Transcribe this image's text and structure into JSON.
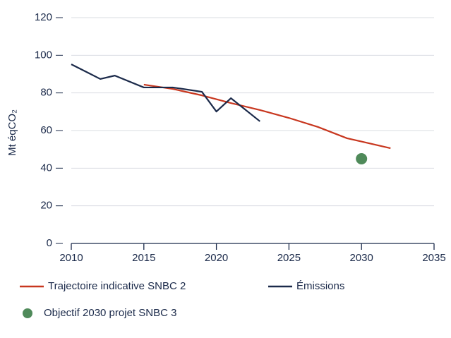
{
  "chart_data": {
    "type": "line",
    "ylabel": "Mt éqCO₂",
    "xlim": [
      2010,
      2035
    ],
    "xticks": [
      2010,
      2015,
      2020,
      2025,
      2030,
      2035
    ],
    "ylim": [
      0,
      120
    ],
    "yticks": [
      0,
      20,
      40,
      60,
      80,
      100,
      120
    ],
    "grid": true,
    "series": [
      {
        "name": "Trajectoire indicative SNBC 2",
        "color": "#c8371f",
        "style": "line",
        "x": [
          2015,
          2017,
          2019,
          2021,
          2023,
          2025,
          2027,
          2029,
          2032
        ],
        "values": [
          84.4,
          82.1,
          78.7,
          74.6,
          70.9,
          66.7,
          61.9,
          55.9,
          50.6
        ]
      },
      {
        "name": "Émissions",
        "color": "#1b2a4a",
        "style": "line",
        "x": [
          2010,
          2012,
          2013,
          2015,
          2017,
          2019,
          2020,
          2021,
          2023
        ],
        "values": [
          95.2,
          87.4,
          89.2,
          82.9,
          82.9,
          80.6,
          70.1,
          77.2,
          64.9
        ]
      },
      {
        "name": "Objectif 2030 projet SNBC 3",
        "color": "#4f8a5a",
        "style": "marker",
        "x": [
          2030
        ],
        "values": [
          45
        ]
      }
    ]
  }
}
